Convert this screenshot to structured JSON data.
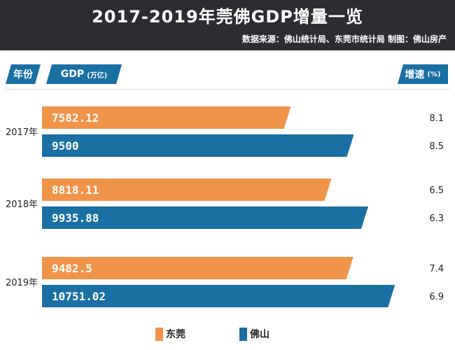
{
  "header": {
    "title": "2017-2019年莞佛GDP增量一览",
    "source": "数据来源：佛山统计局、东莞市统计局 制图：佛山房产"
  },
  "columns": {
    "year": "年份",
    "gdp": "GDP",
    "gdp_unit": "(万亿)",
    "growth": "增速",
    "growth_unit": "(%)"
  },
  "colors": {
    "dongguan": "#f0944a",
    "foshan": "#1a6fa3",
    "header_bg": "#2c2d33"
  },
  "chart_data": {
    "type": "bar",
    "orientation": "horizontal",
    "title": "2017-2019年莞佛GDP增量一览",
    "categories": [
      "2017年",
      "2018年",
      "2019年"
    ],
    "series": [
      {
        "name": "东莞",
        "values": [
          7582.12,
          8818.11,
          9482.5
        ],
        "value_labels": [
          "7582.12",
          "8818.11",
          "9482.5"
        ],
        "growth": [
          "8.1",
          "6.5",
          "7.4"
        ]
      },
      {
        "name": "佛山",
        "values": [
          9500,
          9935.88,
          10751.02
        ],
        "value_labels": [
          "9500",
          "9935.88",
          "10751.02"
        ],
        "growth": [
          "8.5",
          "6.3",
          "6.9"
        ]
      }
    ],
    "xlim": [
      0,
      11300
    ],
    "grid": false,
    "legend": "bottom"
  }
}
